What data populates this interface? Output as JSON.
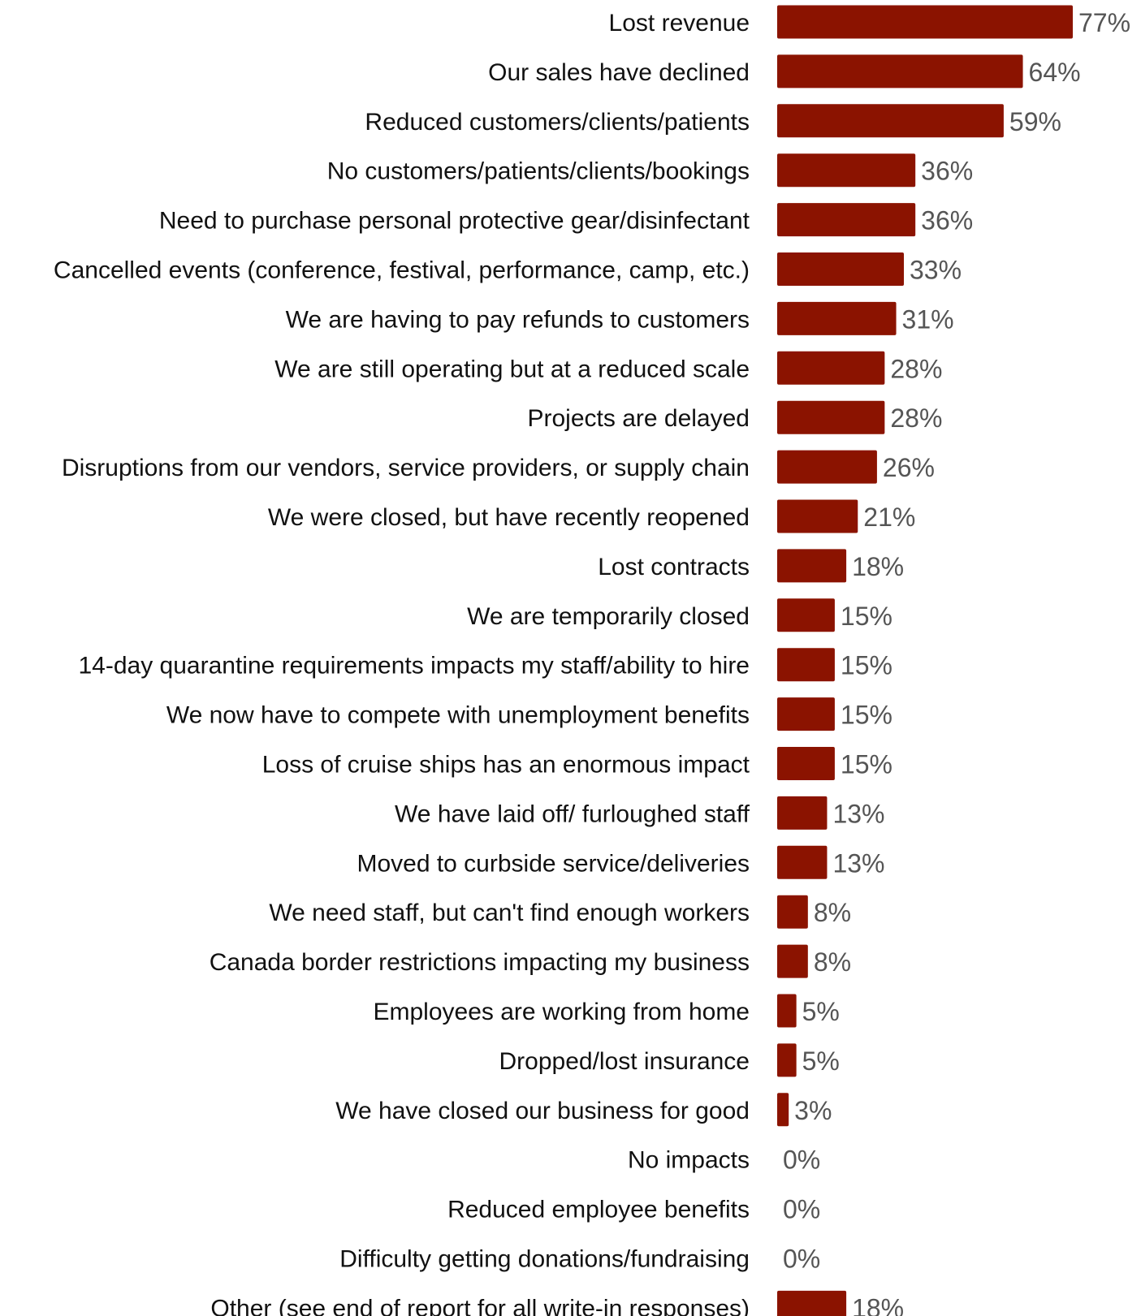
{
  "chart_data": {
    "type": "bar",
    "orientation": "horizontal",
    "categories": [
      "Lost revenue",
      "Our sales have declined",
      "Reduced customers/clients/patients",
      "No customers/patients/clients/bookings",
      "Need to purchase personal protective gear/disinfectant",
      "Cancelled events (conference, festival, performance, camp, etc.)",
      "We are having to pay refunds to customers",
      "We are still operating but at a reduced scale",
      "Projects are delayed",
      "Disruptions from our vendors, service providers, or supply chain",
      "We were closed, but have recently reopened",
      "Lost contracts",
      "We are temporarily closed",
      "14-day quarantine requirements impacts my staff/ability to hire",
      "We now have to compete with unemployment benefits",
      "Loss of cruise ships has an enormous impact",
      "We have laid off/ furloughed staff",
      "Moved to curbside service/deliveries",
      "We need staff, but can't find enough workers",
      "Canada border restrictions impacting my business",
      "Employees are working from home",
      "Dropped/lost insurance",
      "We have closed our business for good",
      "No impacts",
      "Reduced employee benefits",
      "Difficulty getting donations/fundraising",
      "Other (see end of report for all write-in responses)"
    ],
    "values": [
      77,
      64,
      59,
      36,
      36,
      33,
      31,
      28,
      28,
      26,
      21,
      18,
      15,
      15,
      15,
      15,
      13,
      13,
      8,
      8,
      5,
      5,
      3,
      0,
      0,
      0,
      18
    ],
    "value_labels": [
      "77%",
      "64%",
      "59%",
      "36%",
      "36%",
      "33%",
      "31%",
      "28%",
      "28%",
      "26%",
      "21%",
      "18%",
      "15%",
      "15%",
      "15%",
      "15%",
      "13%",
      "13%",
      "8%",
      "8%",
      "5%",
      "5%",
      "3%",
      "0%",
      "0%",
      "0%",
      "18%"
    ],
    "unit": "%",
    "xlim": [
      0,
      77
    ],
    "grid": false,
    "legend": "none",
    "bar_color": "#8b1300"
  }
}
